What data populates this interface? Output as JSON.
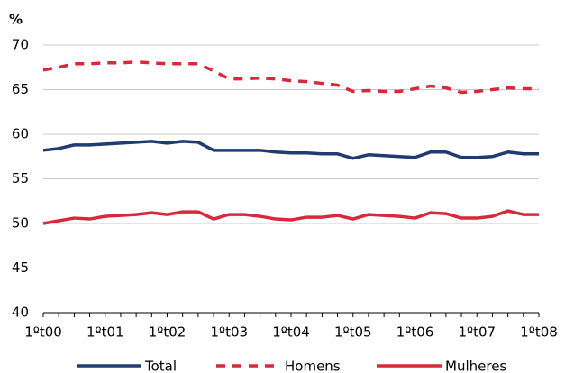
{
  "chart_data": {
    "type": "line",
    "y_label": "%",
    "categories": [
      "1ºt00",
      null,
      null,
      null,
      "1ºt01",
      null,
      null,
      null,
      "1ºt02",
      null,
      null,
      null,
      "1ºt03",
      null,
      null,
      null,
      "1ºt04",
      null,
      null,
      null,
      "1ºt05",
      null,
      null,
      null,
      "1ºt06",
      null,
      null,
      null,
      "1ºt07",
      null,
      null,
      null,
      "1ºt08"
    ],
    "series": [
      {
        "name": "Total",
        "color": "#1f3b72",
        "line_style": "solid",
        "values": [
          58.2,
          58.4,
          58.8,
          58.8,
          58.9,
          59.0,
          59.1,
          59.2,
          59.0,
          59.2,
          59.1,
          58.2,
          58.2,
          58.2,
          58.2,
          58.0,
          57.9,
          57.9,
          57.8,
          57.8,
          57.3,
          57.7,
          57.6,
          57.5,
          57.4,
          58.0,
          58.0,
          57.4,
          57.4,
          57.5,
          58.0,
          57.8,
          57.8
        ]
      },
      {
        "name": "Homens",
        "color": "#d8283c",
        "line_style": "dashed",
        "values": [
          67.2,
          67.5,
          67.9,
          67.9,
          68.0,
          68.0,
          68.1,
          68.0,
          67.9,
          67.9,
          67.9,
          67.1,
          66.2,
          66.2,
          66.3,
          66.2,
          66.0,
          65.9,
          65.7,
          65.5,
          64.8,
          64.9,
          64.8,
          64.8,
          65.1,
          65.4,
          65.2,
          64.7,
          64.8,
          65.0,
          65.2,
          65.1,
          65.1
        ]
      },
      {
        "name": "Mulheres",
        "color": "#d8283c",
        "line_style": "solid",
        "values": [
          50.0,
          50.3,
          50.6,
          50.5,
          50.8,
          50.9,
          51.0,
          51.2,
          51.0,
          51.3,
          51.3,
          50.5,
          51.0,
          51.0,
          50.8,
          50.5,
          50.4,
          50.7,
          50.7,
          50.9,
          50.5,
          51.0,
          50.9,
          50.8,
          50.6,
          51.2,
          51.1,
          50.6,
          50.6,
          50.8,
          51.4,
          51.0,
          51.0
        ]
      }
    ],
    "ylim": [
      40,
      70
    ],
    "yticks": [
      40,
      45,
      50,
      55,
      60,
      65,
      70
    ],
    "grid": true,
    "legend": "bottom"
  }
}
